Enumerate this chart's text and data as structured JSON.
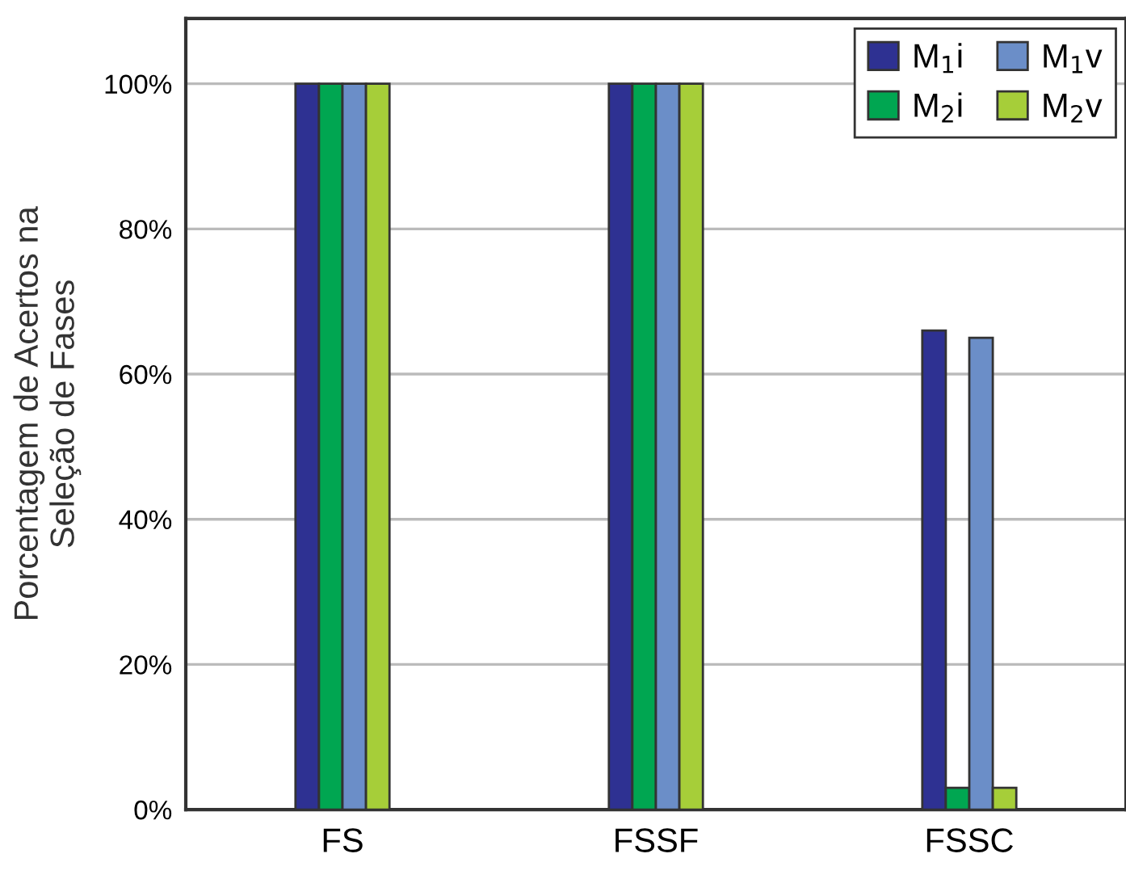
{
  "chart_data": {
    "type": "bar",
    "ylabel": "Porcentagem de Acertos na\nSeleção de Fases",
    "categories": [
      "FS",
      "FSSF",
      "FSSC"
    ],
    "series": [
      {
        "name": "M$_{1}$i",
        "color": "#2e3192",
        "values": [
          100,
          100,
          66
        ]
      },
      {
        "name": "M$_{2}$i",
        "color": "#00a651",
        "values": [
          100,
          100,
          3
        ]
      },
      {
        "name": "M$_{1}$v",
        "color": "#6b8ec8",
        "values": [
          100,
          100,
          65
        ]
      },
      {
        "name": "M$_{2}$v",
        "color": "#a6ce39",
        "values": [
          100,
          100,
          3
        ]
      }
    ],
    "ylim": [
      0,
      109
    ],
    "yticks": [
      {
        "value": 0,
        "label": "0%"
      },
      {
        "value": 20,
        "label": "20%"
      },
      {
        "value": 40,
        "label": "40%"
      },
      {
        "value": 60,
        "label": "60%"
      },
      {
        "value": 80,
        "label": "80%"
      },
      {
        "value": 100,
        "label": "100%"
      }
    ],
    "grid": "y",
    "legend": "top right"
  }
}
